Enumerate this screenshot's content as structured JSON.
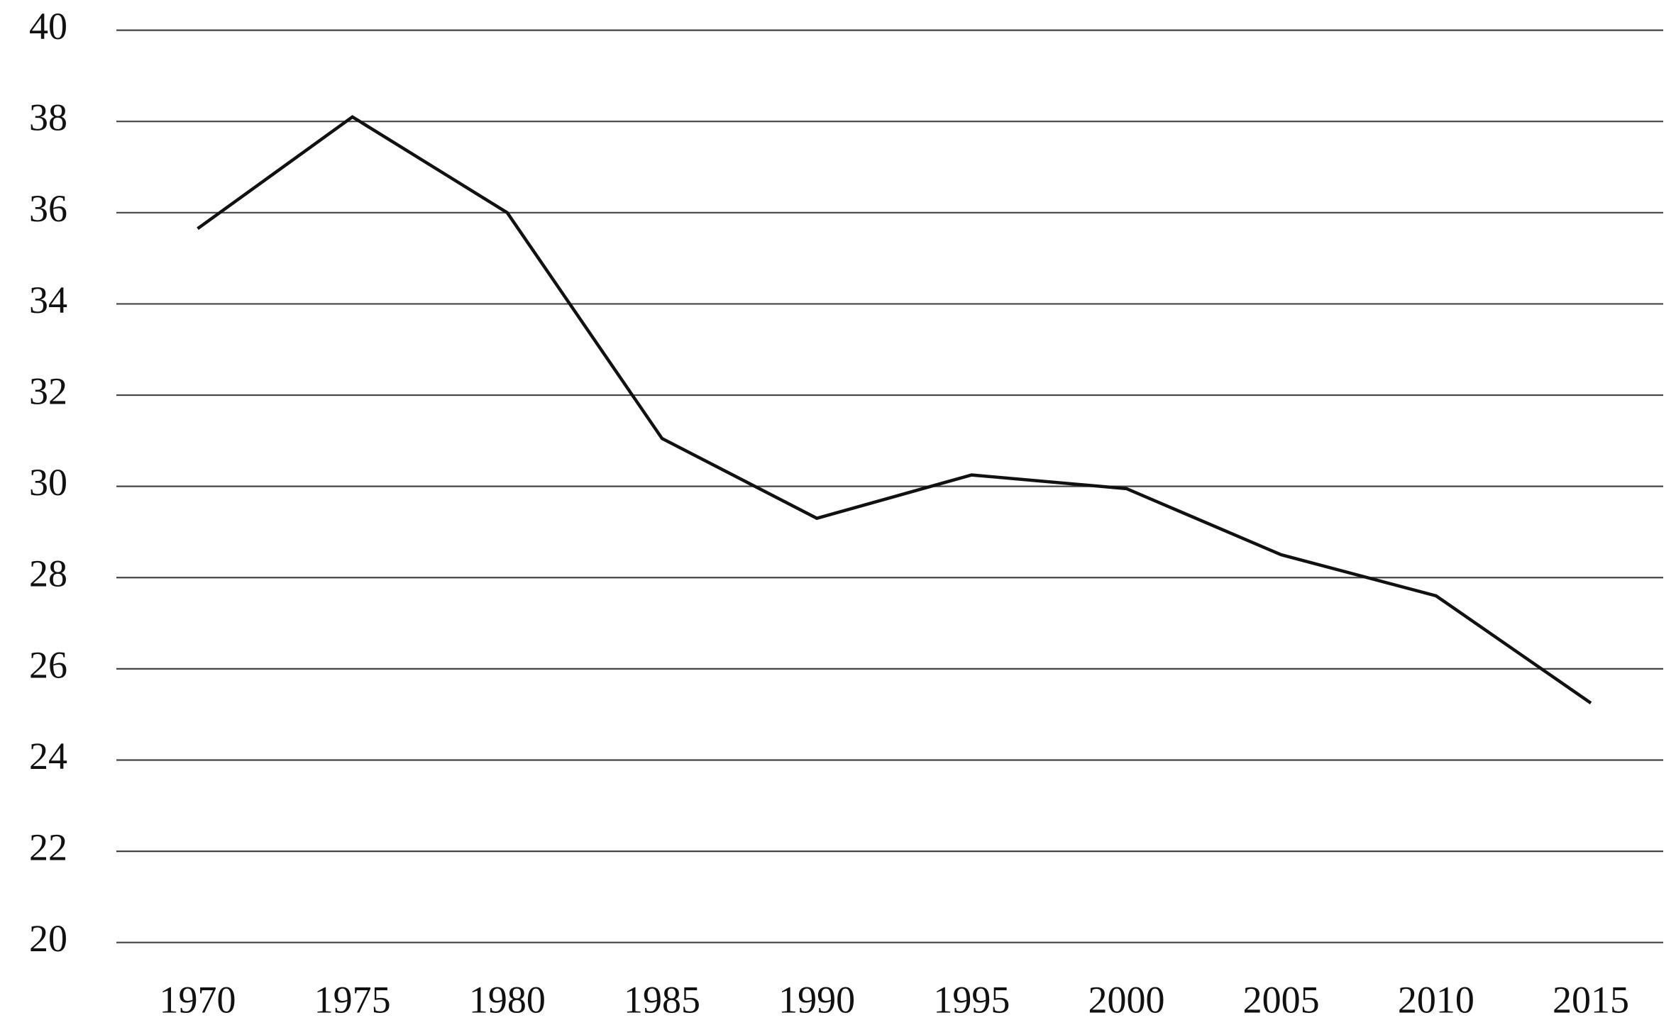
{
  "chart_data": {
    "type": "line",
    "categories": [
      "1970",
      "1975",
      "1980",
      "1985",
      "1990",
      "1995",
      "2000",
      "2005",
      "2010",
      "2015"
    ],
    "values": [
      35.65,
      38.1,
      36.0,
      31.05,
      29.3,
      30.25,
      29.95,
      28.5,
      27.6,
      25.25
    ],
    "color": "#111111",
    "ylim": [
      20,
      40
    ],
    "yticks": [
      20,
      22,
      24,
      26,
      28,
      30,
      32,
      34,
      36,
      38,
      40
    ],
    "grid": true
  }
}
